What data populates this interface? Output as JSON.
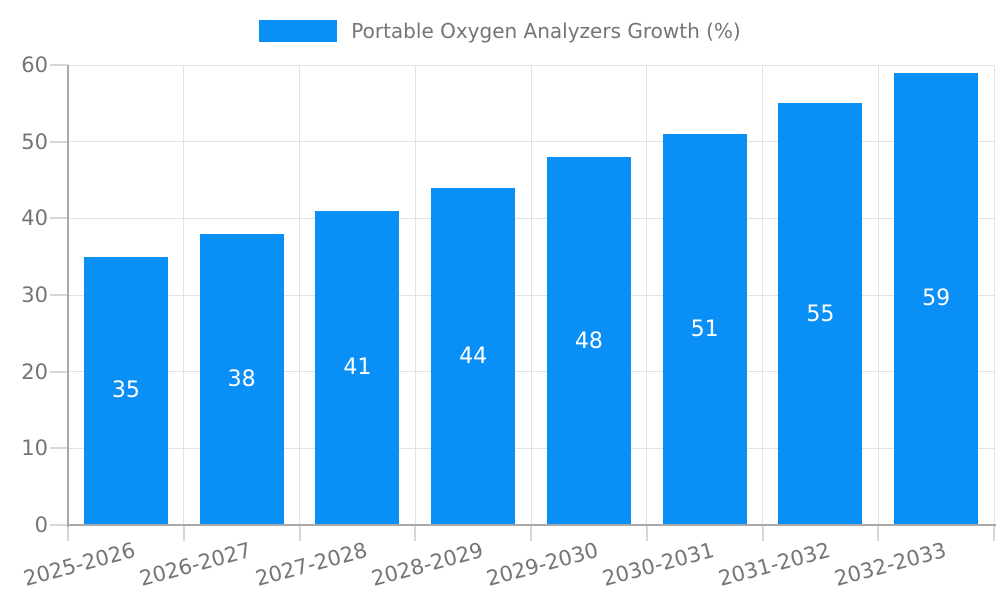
{
  "legend": {
    "label": "Portable Oxygen Analyzers Growth (%)"
  },
  "chart_data": {
    "type": "bar",
    "title": "Portable Oxygen Analyzers Growth (%)",
    "categories": [
      "2025-2026",
      "2026-2027",
      "2027-2028",
      "2028-2029",
      "2029-2030",
      "2030-2031",
      "2031-2032",
      "2032-2033"
    ],
    "values": [
      35,
      38,
      41,
      44,
      48,
      51,
      55,
      59
    ],
    "xlabel": "",
    "ylabel": "",
    "ylim": [
      0,
      60
    ],
    "yticks": [
      0,
      10,
      20,
      30,
      40,
      50,
      60
    ],
    "grid": true,
    "legend_position": "top-center",
    "bar_color": "#0a8ff7",
    "value_label_color": "#ffffff"
  },
  "colors": {
    "bar": "#0a8ff7",
    "grid": "#e2e2e2",
    "tick": "#d7d7d7",
    "axis": "#a8a8a8",
    "text": "#757575",
    "value_text": "#ffffff",
    "background": "#ffffff"
  }
}
